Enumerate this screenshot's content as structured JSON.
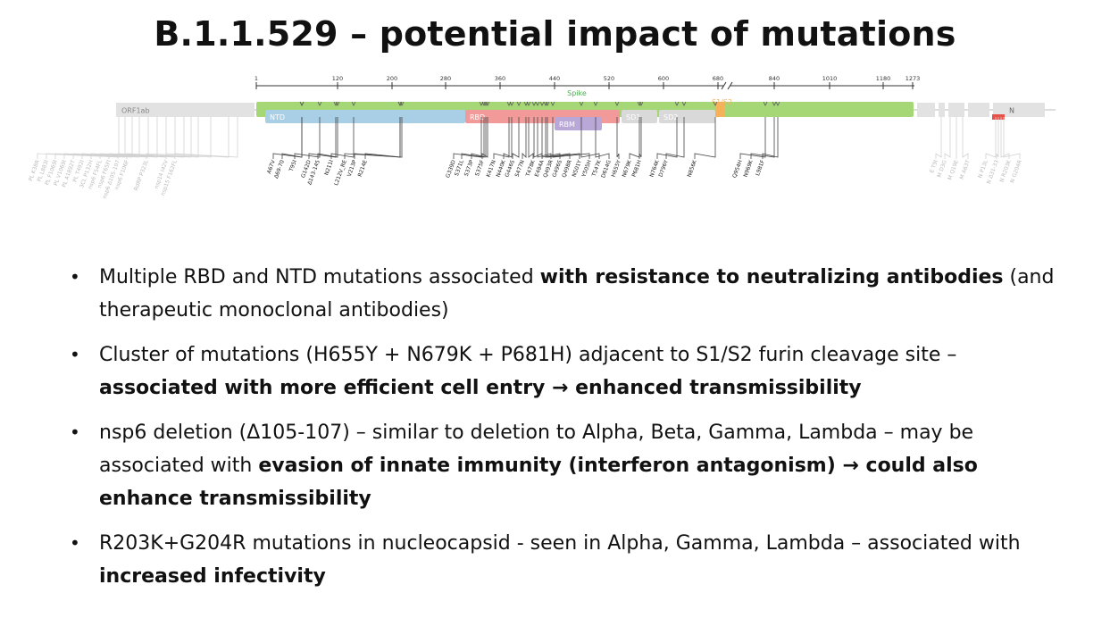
{
  "slide": {
    "title": "B.1.1.529 – potential impact of mutations"
  },
  "genome_map": {
    "axis_ticks": [
      "1",
      "120",
      "200",
      "280",
      "360",
      "440",
      "520",
      "600",
      "680",
      "840",
      "1010",
      "1180",
      "1273"
    ],
    "labels": {
      "orf1ab": "ORF1ab",
      "spike": "Spike",
      "ntd": "NTD",
      "rbd": "RBD",
      "rbm": "RBM",
      "sd1": "SD1",
      "sd2": "SD2",
      "s1s2": "S1/S2",
      "n": "N"
    },
    "colors": {
      "spike": "#a6d776",
      "ntd": "#a9cfe6",
      "rbd": "#f29a9a",
      "rbm": "#b9a7d8",
      "sd": "#d9d9d9",
      "s1s2": "#f5b25b",
      "genome": "#d9d9d9",
      "n_mark": "#e8504a",
      "spike_label": "#4caf50",
      "spike_mut_text": "#222222",
      "other_mut_text": "#bbbbbb"
    },
    "orf1ab_mutations": [
      "PL K38R",
      "PL L883I",
      "PL F1069I",
      "PL V1069I",
      "PL A1892T",
      "PL T492I",
      "3CL P132H",
      "nsp6 F54FL",
      "nsp6 F65FI",
      "nsp6 Δ105-107",
      "nsp6 F106F",
      "RdRP P323L",
      "nsp14 I42V",
      "nsp15 F162FL"
    ],
    "spike_mutations": [
      "A67V",
      "Δ69-70",
      "T95I",
      "G142D",
      "Δ143-145",
      "N211I",
      "L212V_RE",
      "V213P",
      "R214E",
      "G339D",
      "S371L",
      "S373P",
      "S375F",
      "K417N",
      "N440K",
      "G446S",
      "S477N",
      "T478K",
      "E484A",
      "Q493R",
      "G496S",
      "Q498R",
      "N501Y",
      "Y505H",
      "T547K",
      "D614G",
      "H655Y",
      "N679K",
      "P681H",
      "N764K",
      "D796Y",
      "N856K",
      "Q954H",
      "N969K",
      "L981F"
    ],
    "other_mutations": [
      "E T9I",
      "M D3G",
      "M Q19E",
      "M A63T",
      "N P13L",
      "N Δ31-33",
      "N R203K",
      "N G204R"
    ]
  },
  "bullets": [
    {
      "segments": [
        {
          "text": "Multiple RBD and NTD mutations associated ",
          "bold": false
        },
        {
          "text": "with resistance to neutralizing antibodies",
          "bold": true
        },
        {
          "text": " (and therapeutic monoclonal antibodies)",
          "bold": false
        }
      ]
    },
    {
      "segments": [
        {
          "text": "Cluster of mutations (H655Y + N679K + P681H) adjacent to S1/S2 furin cleavage site – ",
          "bold": false
        },
        {
          "text": "associated with more efficient cell entry → enhanced transmissibility",
          "bold": true
        }
      ]
    },
    {
      "segments": [
        {
          "text": "nsp6 deletion (Δ105-107) – similar to deletion to Alpha, Beta, Gamma, Lambda – may be associated with ",
          "bold": false
        },
        {
          "text": "evasion of innate immunity (interferon antagonism) → could also enhance transmissibility",
          "bold": true
        }
      ]
    },
    {
      "segments": [
        {
          "text": "R203K+G204R mutations in nucleocapsid - seen in Alpha, Gamma, Lambda – associated with ",
          "bold": false
        },
        {
          "text": "increased infectivity",
          "bold": true
        }
      ]
    }
  ]
}
